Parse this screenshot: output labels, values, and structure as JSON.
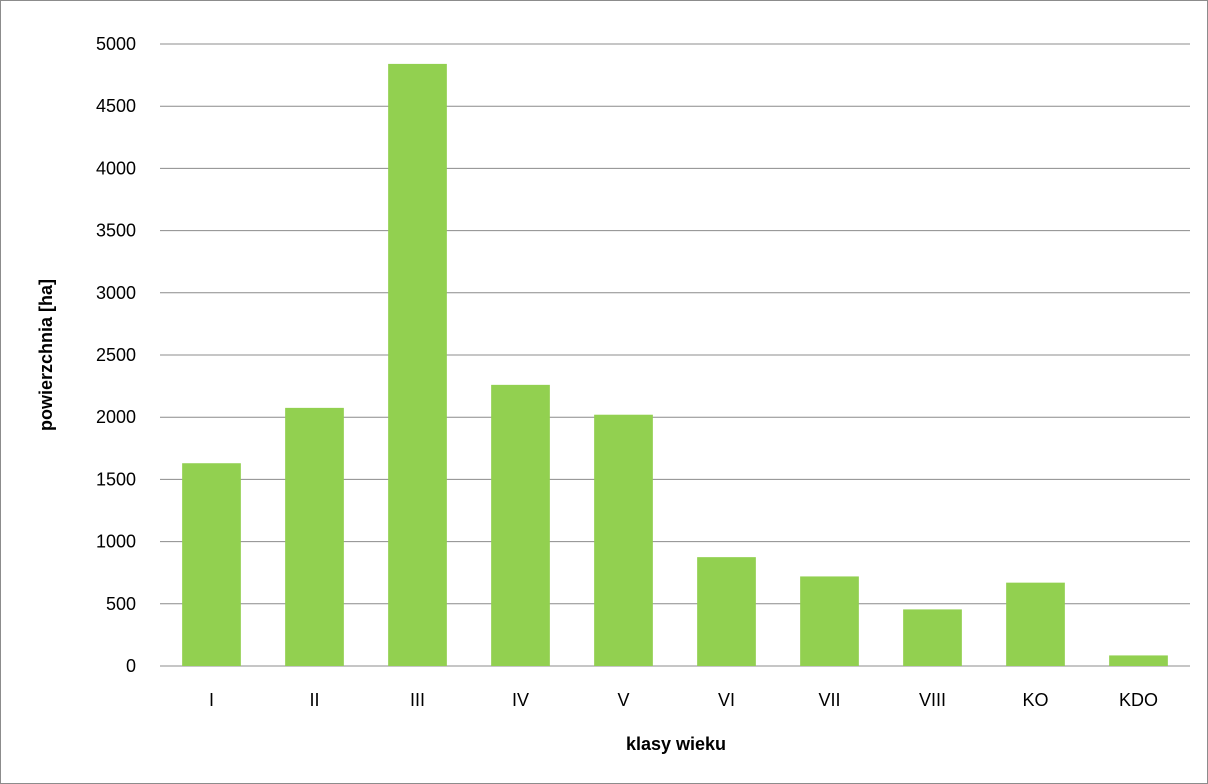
{
  "chart_data": {
    "type": "bar",
    "categories": [
      "I",
      "II",
      "III",
      "IV",
      "V",
      "VI",
      "VII",
      "VIII",
      "KO",
      "KDO"
    ],
    "values": [
      1630,
      2075,
      4840,
      2260,
      2020,
      875,
      720,
      455,
      670,
      85
    ],
    "xlabel": "klasy wieku",
    "ylabel": "powierzchnia [ha]",
    "ylim": [
      0,
      5000
    ],
    "yticks": [
      0,
      500,
      1000,
      1500,
      2000,
      2500,
      3000,
      3500,
      4000,
      4500,
      5000
    ],
    "grid": true,
    "legend": "none",
    "colors": {
      "bar": "#92d050",
      "grid": "#8c8c8c"
    }
  }
}
